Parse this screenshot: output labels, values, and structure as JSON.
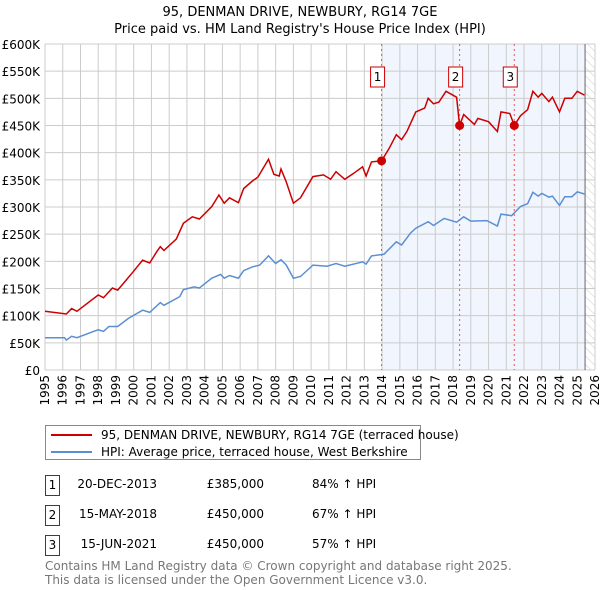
{
  "chart_data": {
    "type": "line",
    "title": "95, DENMAN DRIVE, NEWBURY, RG14 7GE",
    "subtitle": "Price paid vs. HM Land Registry's House Price Index (HPI)",
    "xlim": [
      1995,
      2026
    ],
    "ylim": [
      0,
      600000
    ],
    "x_ticks": [
      "1995",
      "1996",
      "1997",
      "1998",
      "1999",
      "2000",
      "2001",
      "2002",
      "2003",
      "2004",
      "2005",
      "2006",
      "2007",
      "2008",
      "2009",
      "2010",
      "2011",
      "2012",
      "2013",
      "2014",
      "2015",
      "2016",
      "2017",
      "2018",
      "2019",
      "2020",
      "2021",
      "2022",
      "2023",
      "2024",
      "2025",
      "2026"
    ],
    "y_ticks": [
      {
        "v": 0,
        "label": "£0"
      },
      {
        "v": 50000,
        "label": "£50K"
      },
      {
        "v": 100000,
        "label": "£100K"
      },
      {
        "v": 150000,
        "label": "£150K"
      },
      {
        "v": 200000,
        "label": "£200K"
      },
      {
        "v": 250000,
        "label": "£250K"
      },
      {
        "v": 300000,
        "label": "£300K"
      },
      {
        "v": 350000,
        "label": "£350K"
      },
      {
        "v": 400000,
        "label": "£400K"
      },
      {
        "v": 450000,
        "label": "£450K"
      },
      {
        "v": 500000,
        "label": "£500K"
      },
      {
        "v": 550000,
        "label": "£550K"
      },
      {
        "v": 600000,
        "label": "£600K"
      }
    ],
    "grid": true,
    "data_end": 2025.44,
    "series": [
      {
        "name": "95, DENMAN DRIVE, NEWBURY, RG14 7GE (terraced house)",
        "color": "#cc0000",
        "x": [
          1995,
          1996.2,
          1996.5,
          1996.8,
          1998,
          1998.3,
          1998.8,
          1999.1,
          1999.9,
          2000.5,
          2000.9,
          2001.3,
          2001.5,
          2001.7,
          2002.4,
          2002.8,
          2003.3,
          2003.7,
          2004.4,
          2004.8,
          2005.1,
          2005.4,
          2005.9,
          2006.2,
          2006.7,
          2007,
          2007.6,
          2007.9,
          2008.2,
          2008.3,
          2008.6,
          2009,
          2009.4,
          2010.1,
          2010.7,
          2011.1,
          2011.4,
          2011.9,
          2012.4,
          2012.9,
          2013.1,
          2013.4,
          2013.97,
          2014.4,
          2014.8,
          2015.1,
          2015.4,
          2015.9,
          2016.4,
          2016.6,
          2016.9,
          2017.2,
          2017.6,
          2018.2,
          2018.37,
          2018.6,
          2019.2,
          2019.4,
          2020,
          2020.5,
          2020.7,
          2021.2,
          2021.45,
          2021.8,
          2022.2,
          2022.5,
          2022.8,
          2023,
          2023.4,
          2023.6,
          2024,
          2024.3,
          2024.7,
          2025,
          2025.4
        ],
        "values": [
          108000,
          103000,
          113000,
          108000,
          138000,
          133000,
          151000,
          147000,
          178000,
          202000,
          197000,
          218000,
          227000,
          220000,
          241000,
          270000,
          282000,
          278000,
          301000,
          322000,
          307000,
          317000,
          308000,
          334000,
          348000,
          355000,
          388000,
          360000,
          357000,
          370000,
          346000,
          307000,
          317000,
          356000,
          359000,
          351000,
          365000,
          351000,
          362000,
          374000,
          357000,
          383000,
          385000,
          408000,
          433000,
          424000,
          439000,
          475000,
          482000,
          500000,
          490000,
          493000,
          513000,
          502000,
          450000,
          470000,
          452000,
          463000,
          457000,
          439000,
          475000,
          472000,
          450000,
          468000,
          479000,
          513000,
          502000,
          509000,
          494000,
          502000,
          475000,
          500000,
          500000,
          513000,
          506000
        ]
      },
      {
        "name": "HPI: Average price, terraced house, West Berkshire",
        "color": "#5b8fd4",
        "x": [
          1995,
          1996.1,
          1996.2,
          1996.5,
          1996.8,
          1997.7,
          1998,
          1998.3,
          1998.6,
          1999.1,
          1999.7,
          2000.5,
          2000.9,
          2001.5,
          2001.7,
          2002.6,
          2002.8,
          2003.4,
          2003.7,
          2004.4,
          2004.9,
          2005.1,
          2005.4,
          2005.9,
          2006.2,
          2006.7,
          2007.1,
          2007.6,
          2008,
          2008.3,
          2008.6,
          2009,
          2009.4,
          2010.1,
          2010.9,
          2011.4,
          2011.9,
          2012.9,
          2013.1,
          2013.4,
          2014.1,
          2014.8,
          2015.1,
          2015.6,
          2015.9,
          2016.6,
          2016.9,
          2017.5,
          2018.2,
          2018.6,
          2019,
          2019.9,
          2020.5,
          2020.7,
          2021.3,
          2021.8,
          2022.2,
          2022.5,
          2022.8,
          2023,
          2023.4,
          2023.6,
          2024,
          2024.3,
          2024.7,
          2025,
          2025.4
        ],
        "values": [
          59500,
          59500,
          55000,
          62000,
          59500,
          70500,
          74000,
          71000,
          80000,
          80000,
          95000,
          110000,
          106000,
          124000,
          119000,
          135000,
          148000,
          153000,
          151000,
          169000,
          176000,
          169000,
          174000,
          169000,
          183000,
          190000,
          193000,
          210000,
          196000,
          203000,
          193000,
          169000,
          172000,
          193000,
          191000,
          196000,
          191000,
          199000,
          195000,
          210000,
          213000,
          236000,
          230000,
          252000,
          261000,
          273000,
          266000,
          279000,
          272000,
          282000,
          274000,
          275000,
          265000,
          287000,
          284000,
          301000,
          306000,
          327000,
          320000,
          325000,
          318000,
          320000,
          303000,
          319000,
          319000,
          328000,
          324000
        ]
      }
    ],
    "sales": [
      {
        "n": "1",
        "x": 2013.97,
        "date": "20-DEC-2013",
        "price": 385000,
        "price_label": "£385,000",
        "hpi": "84% ↑ HPI"
      },
      {
        "n": "2",
        "x": 2018.37,
        "date": "15-MAY-2018",
        "price": 450000,
        "price_label": "£450,000",
        "hpi": "67% ↑ HPI"
      },
      {
        "n": "3",
        "x": 2021.45,
        "date": "15-JUN-2021",
        "price": 450000,
        "price_label": "£450,000",
        "hpi": "57% ↑ HPI"
      }
    ],
    "legend_position": "below"
  },
  "footer": {
    "line1": "Contains HM Land Registry data © Crown copyright and database right 2025.",
    "line2": "This data is licensed under the Open Government Licence v3.0."
  }
}
